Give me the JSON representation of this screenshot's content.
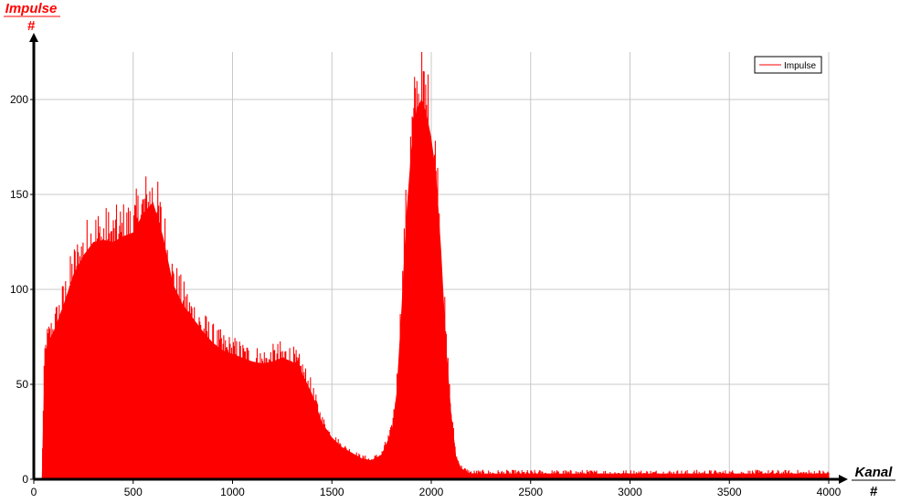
{
  "chart_data": {
    "type": "area",
    "title": "",
    "ylabel": "Impulse",
    "ylabel_unit": "#",
    "xlabel": "Kanal",
    "xlabel_unit": "#",
    "xlim": [
      0,
      4000
    ],
    "ylim": [
      0,
      225
    ],
    "xticks": [
      0,
      500,
      1000,
      1500,
      2000,
      2500,
      3000,
      3500,
      4000
    ],
    "yticks": [
      0,
      50,
      100,
      150,
      200
    ],
    "grid": true,
    "legend_position": "top-right",
    "series": [
      {
        "name": "Impulse",
        "color": "#ff0000",
        "x": [
          40,
          55,
          70,
          100,
          150,
          200,
          250,
          300,
          350,
          400,
          450,
          500,
          550,
          600,
          650,
          700,
          750,
          800,
          850,
          900,
          950,
          1000,
          1050,
          1100,
          1150,
          1200,
          1250,
          1300,
          1350,
          1400,
          1450,
          1500,
          1550,
          1600,
          1650,
          1700,
          1750,
          1800,
          1825,
          1850,
          1875,
          1900,
          1925,
          1950,
          1975,
          2000,
          2025,
          2050,
          2075,
          2100,
          2125,
          2150,
          2175,
          2200,
          2250,
          2300,
          2500,
          3000,
          3500,
          4000
        ],
        "y": [
          0,
          65,
          72,
          78,
          92,
          108,
          118,
          125,
          126,
          125,
          128,
          130,
          140,
          146,
          128,
          103,
          92,
          85,
          78,
          72,
          68,
          66,
          64,
          62,
          61,
          62,
          64,
          62,
          56,
          45,
          30,
          22,
          17,
          14,
          11,
          10,
          13,
          25,
          45,
          90,
          140,
          175,
          195,
          200,
          193,
          180,
          160,
          120,
          70,
          35,
          12,
          6,
          4,
          3,
          3,
          3,
          3,
          3,
          3,
          3
        ]
      }
    ]
  }
}
